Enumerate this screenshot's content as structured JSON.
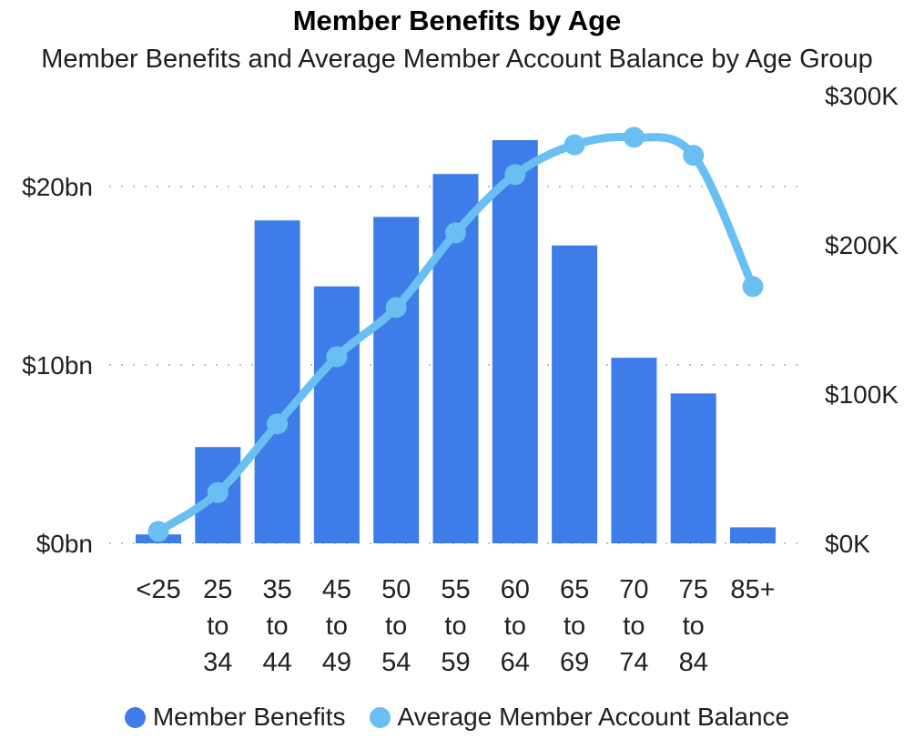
{
  "title": "Member Benefits by Age",
  "subtitle": "Member Benefits and Average Member Account Balance by Age Group",
  "colors": {
    "bar": "#3E7DE9",
    "line": "#69BFF2",
    "text": "#212121",
    "title_text": "#000000",
    "grid": "#C2C2C2",
    "background": "#FFFFFF"
  },
  "legend": {
    "items": [
      {
        "label": "Member Benefits",
        "color": "#3E7DE9"
      },
      {
        "label": "Average Member Account Balance",
        "color": "#69BFF2"
      }
    ]
  },
  "chart_data": {
    "type": "combo_bar_line",
    "categories": [
      "<25",
      "25 to 34",
      "35 to 44",
      "45 to 49",
      "50 to 54",
      "55 to 59",
      "60 to 64",
      "65 to 69",
      "70 to 74",
      "75 to 84",
      "85+"
    ],
    "series": [
      {
        "name": "Member Benefits",
        "type": "bar",
        "axis": "left",
        "unit": "$bn",
        "values": [
          0.5,
          5.4,
          18.1,
          14.4,
          18.3,
          20.7,
          22.6,
          16.7,
          10.4,
          8.4,
          0.9
        ]
      },
      {
        "name": "Average Member Account Balance",
        "type": "line",
        "axis": "right",
        "unit": "$K",
        "values": [
          8,
          34,
          80,
          125,
          158,
          208,
          247,
          267,
          272,
          260,
          172
        ]
      }
    ],
    "left_axis": {
      "tick_values": [
        0,
        10,
        20
      ],
      "tick_labels": [
        "$0bn",
        "$10bn",
        "$20bn"
      ],
      "max": 25.1
    },
    "right_axis": {
      "tick_values": [
        0,
        100,
        200,
        300
      ],
      "tick_labels": [
        "$0K",
        "$100K",
        "$200K",
        "$300K"
      ],
      "max": 300
    },
    "grid": "dotted-horizontal",
    "legend_position": "bottom"
  }
}
